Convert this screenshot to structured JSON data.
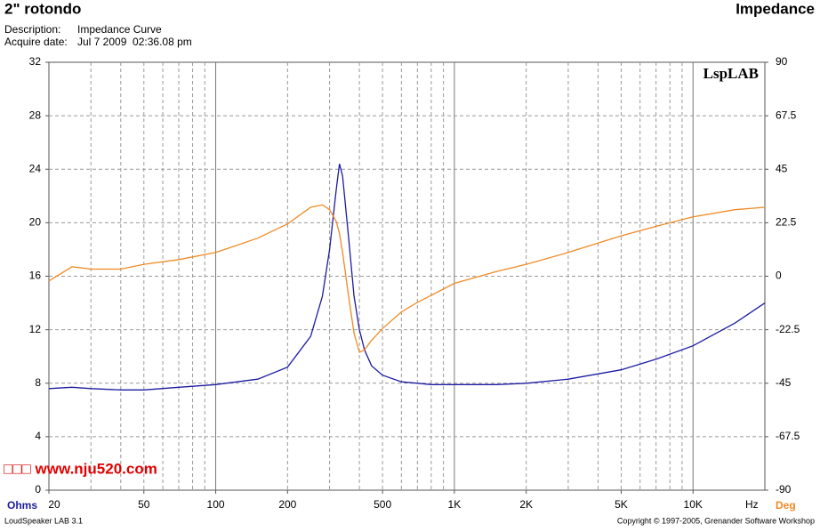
{
  "header": {
    "title": "2\" rotondo",
    "right_title": "Impedance",
    "description_label": "Description:",
    "description": "Impedance Curve",
    "date_label": "Acquire date:",
    "date": "Jul 7 2009  02:36.08 pm"
  },
  "footer": {
    "left": "LoudSpeaker LAB 3.1",
    "right": "Copyright © 1997-2005, Grenander Software Workshop"
  },
  "watermark": "□□□ www.nju520.com",
  "logo": "LspLAB",
  "chart_data": {
    "type": "line",
    "log_x": true,
    "grid": true,
    "xlabel": "Hz",
    "ylabel": "Ohms",
    "y2label": "Deg",
    "xlim": [
      20,
      20000
    ],
    "ylim": [
      0,
      32
    ],
    "y2lim": [
      -90,
      90
    ],
    "xticks": [
      20,
      50,
      100,
      200,
      500,
      {
        "value": 1000,
        "label": "1K"
      },
      {
        "value": 2000,
        "label": "2K"
      },
      {
        "value": 5000,
        "label": "5K"
      },
      {
        "value": 10000,
        "label": "10K"
      }
    ],
    "yticks": [
      0,
      4,
      8,
      12,
      16,
      20,
      24,
      28,
      32
    ],
    "y2ticks": [
      -90,
      -67.5,
      -45,
      -22.5,
      0,
      22.5,
      45,
      67.5,
      90
    ],
    "x": [
      20,
      25,
      30,
      40,
      50,
      70,
      100,
      150,
      200,
      250,
      280,
      300,
      320,
      330,
      340,
      360,
      380,
      400,
      420,
      450,
      500,
      600,
      700,
      800,
      1000,
      1500,
      2000,
      3000,
      5000,
      7000,
      10000,
      15000,
      20000
    ],
    "series": [
      {
        "name": "Impedance",
        "color": "#1c1ca0",
        "values": [
          7.6,
          7.7,
          7.6,
          7.5,
          7.5,
          7.7,
          7.9,
          8.3,
          9.2,
          11.5,
          14.5,
          18,
          22.5,
          24.4,
          23.5,
          19,
          14.5,
          12,
          10.5,
          9.3,
          8.6,
          8.1,
          8.0,
          7.9,
          7.9,
          7.9,
          8.0,
          8.3,
          9.0,
          9.8,
          10.8,
          12.5,
          14.0
        ]
      },
      {
        "name": "Phase",
        "color": "#f08a24",
        "axis": "y2",
        "values": [
          -2,
          4,
          3,
          3,
          5,
          7,
          10,
          16,
          22,
          29,
          30,
          28,
          23,
          18,
          10,
          -8,
          -24,
          -32,
          -31,
          -27,
          -22,
          -15,
          -11,
          -8,
          -3,
          2,
          5,
          10,
          17,
          21,
          25,
          28,
          29
        ]
      }
    ]
  }
}
